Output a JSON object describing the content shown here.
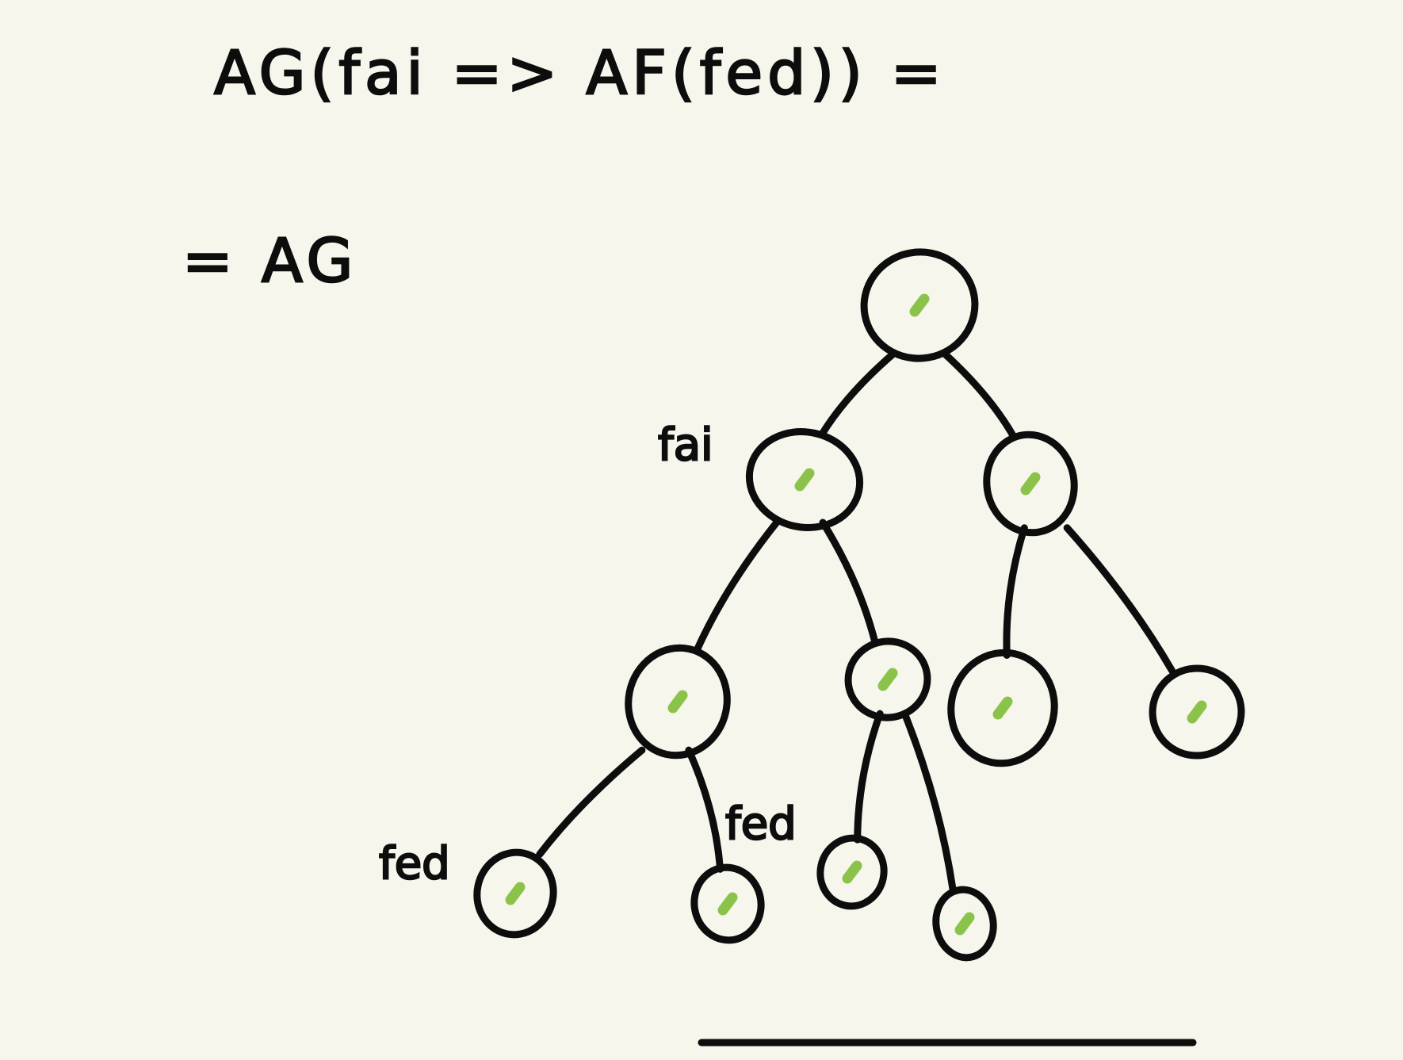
{
  "formula": {
    "line1": "AG(fai => AF(fed)) =",
    "line2": "= AG"
  },
  "tree": {
    "nodes": [
      {
        "id": "root",
        "label": ""
      },
      {
        "id": "n1",
        "label": "fai"
      },
      {
        "id": "n2",
        "label": ""
      },
      {
        "id": "n3",
        "label": ""
      },
      {
        "id": "n4",
        "label": ""
      },
      {
        "id": "n5",
        "label": ""
      },
      {
        "id": "n6",
        "label": ""
      },
      {
        "id": "n7",
        "label": "fed"
      },
      {
        "id": "n8",
        "label": "fed"
      },
      {
        "id": "n9",
        "label": ""
      },
      {
        "id": "n10",
        "label": ""
      }
    ],
    "edges": [
      [
        "root",
        "n1"
      ],
      [
        "root",
        "n2"
      ],
      [
        "n1",
        "n3"
      ],
      [
        "n1",
        "n4"
      ],
      [
        "n2",
        "n5"
      ],
      [
        "n2",
        "n6"
      ],
      [
        "n3",
        "n7"
      ],
      [
        "n3",
        "n8"
      ],
      [
        "n4",
        "n9"
      ],
      [
        "n4",
        "n10"
      ]
    ],
    "mark_color": "#8bc34a",
    "ink_color": "#0d0d0d"
  }
}
